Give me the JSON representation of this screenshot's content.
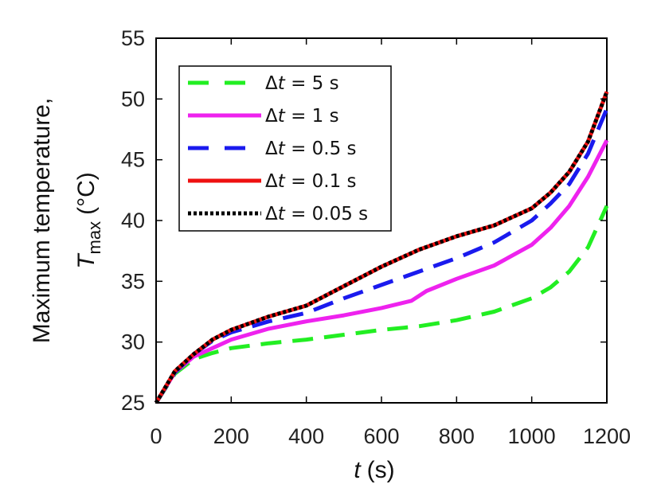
{
  "chart_data": {
    "type": "line",
    "ylabel_line1": "Maximum temperature,",
    "ylabel_symbol": "T",
    "ylabel_subscript": "max",
    "ylabel_unit": "(°C)",
    "xlabel_symbol": "t",
    "xlabel_unit": "(s)",
    "xlim": [
      0,
      1200
    ],
    "ylim": [
      25,
      55
    ],
    "xticks": [
      "0",
      "200",
      "400",
      "600",
      "800",
      "1000",
      "1200"
    ],
    "yticks": [
      "25",
      "30",
      "35",
      "40",
      "45",
      "50",
      "55"
    ],
    "legend_position": "top-left",
    "grid": false,
    "series": [
      {
        "name": "Δt = 5 s",
        "label_prefix": "Δ",
        "label_symbol": "t",
        "label_suffix": " = 5 s",
        "color": "#22ee22",
        "style": "dashed",
        "x": [
          0,
          50,
          100,
          150,
          200,
          300,
          400,
          500,
          600,
          700,
          800,
          900,
          1000,
          1050,
          1100,
          1150,
          1200
        ],
        "y": [
          25,
          27.4,
          28.6,
          29.1,
          29.5,
          29.9,
          30.2,
          30.6,
          31.0,
          31.3,
          31.8,
          32.5,
          33.6,
          34.5,
          35.8,
          37.8,
          41.2
        ]
      },
      {
        "name": "Δt = 1 s",
        "label_prefix": "Δ",
        "label_symbol": "t",
        "label_suffix": " = 1 s",
        "color": "#ee22ee",
        "style": "solid",
        "x": [
          0,
          50,
          100,
          150,
          200,
          300,
          400,
          500,
          600,
          680,
          720,
          800,
          900,
          1000,
          1050,
          1100,
          1150,
          1200
        ],
        "y": [
          25,
          27.5,
          28.8,
          29.5,
          30.2,
          31.1,
          31.7,
          32.2,
          32.8,
          33.4,
          34.2,
          35.2,
          36.3,
          38.0,
          39.4,
          41.2,
          43.6,
          46.6
        ]
      },
      {
        "name": "Δt = 0.5 s",
        "label_prefix": "Δ",
        "label_symbol": "t",
        "label_suffix": " = 0.5 s",
        "color": "#1a1aee",
        "style": "dashed",
        "x": [
          0,
          50,
          100,
          150,
          200,
          300,
          400,
          500,
          600,
          700,
          800,
          900,
          1000,
          1050,
          1100,
          1150,
          1200
        ],
        "y": [
          25,
          27.5,
          29.0,
          30.1,
          30.8,
          31.7,
          32.4,
          33.6,
          34.7,
          35.8,
          36.9,
          38.2,
          40.0,
          41.4,
          43.0,
          45.5,
          49.2
        ]
      },
      {
        "name": "Δt = 0.1 s",
        "label_prefix": "Δ",
        "label_symbol": "t",
        "label_suffix": " = 0.1 s",
        "color": "#ee1111",
        "style": "solid",
        "x": [
          0,
          50,
          100,
          150,
          200,
          300,
          400,
          500,
          600,
          700,
          800,
          900,
          1000,
          1050,
          1100,
          1150,
          1200
        ],
        "y": [
          25,
          27.6,
          29.0,
          30.2,
          31.0,
          32.1,
          33.0,
          34.6,
          36.2,
          37.6,
          38.7,
          39.6,
          41.0,
          42.3,
          44.0,
          46.5,
          50.6
        ]
      },
      {
        "name": "Δt = 0.05 s",
        "label_prefix": "Δ",
        "label_symbol": "t",
        "label_suffix": " = 0.05 s",
        "color": "#000000",
        "style": "dotted",
        "x": [
          0,
          50,
          100,
          150,
          200,
          300,
          400,
          500,
          600,
          700,
          800,
          900,
          1000,
          1050,
          1100,
          1150,
          1200
        ],
        "y": [
          25,
          27.6,
          29.0,
          30.2,
          31.0,
          32.1,
          33.0,
          34.6,
          36.2,
          37.6,
          38.7,
          39.6,
          41.0,
          42.3,
          44.0,
          46.5,
          50.6
        ]
      }
    ]
  }
}
